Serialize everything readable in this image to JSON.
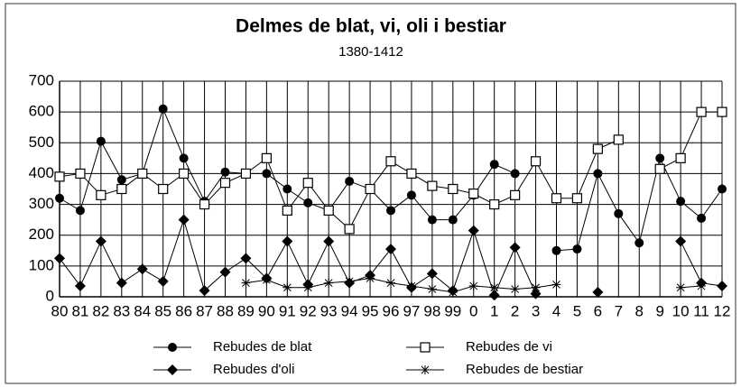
{
  "chart_data": {
    "type": "line",
    "title": "Delmes de blat, vi, oli i bestiar",
    "subtitle": "1380-1412",
    "categories": [
      "80",
      "81",
      "82",
      "83",
      "84",
      "85",
      "86",
      "87",
      "88",
      "89",
      "90",
      "91",
      "92",
      "93",
      "94",
      "95",
      "96",
      "97",
      "98",
      "99",
      "0",
      "1",
      "2",
      "3",
      "4",
      "5",
      "6",
      "7",
      "8",
      "9",
      "10",
      "11",
      "12"
    ],
    "series": [
      {
        "name": "Rebudes de blat",
        "color": "#000000",
        "marker": "circle",
        "values": [
          320,
          280,
          505,
          380,
          400,
          610,
          450,
          310,
          405,
          400,
          400,
          350,
          305,
          280,
          375,
          350,
          280,
          330,
          250,
          250,
          330,
          430,
          400,
          null,
          150,
          155,
          400,
          270,
          175,
          450,
          310,
          255,
          350
        ]
      },
      {
        "name": "Rebudes de vi",
        "color": "#000000",
        "marker": "square",
        "values": [
          390,
          400,
          330,
          350,
          400,
          350,
          400,
          300,
          370,
          400,
          450,
          280,
          370,
          280,
          220,
          350,
          440,
          400,
          360,
          350,
          335,
          300,
          330,
          440,
          320,
          320,
          480,
          510,
          null,
          415,
          450,
          600,
          600
        ]
      },
      {
        "name": "Rebudes d'oli",
        "color": "#000000",
        "marker": "diamond",
        "values": [
          125,
          35,
          180,
          45,
          90,
          50,
          250,
          20,
          80,
          125,
          60,
          180,
          40,
          180,
          45,
          70,
          155,
          30,
          75,
          20,
          215,
          5,
          160,
          10,
          null,
          null,
          15,
          null,
          null,
          null,
          180,
          45,
          35
        ]
      },
      {
        "name": "Rebudes de bestiar",
        "color": "#000000",
        "marker": "star",
        "values": [
          null,
          null,
          null,
          null,
          null,
          null,
          null,
          null,
          null,
          45,
          55,
          30,
          30,
          45,
          50,
          60,
          45,
          35,
          25,
          15,
          35,
          30,
          25,
          30,
          40,
          null,
          null,
          null,
          null,
          null,
          30,
          35,
          null
        ]
      }
    ],
    "ylim": [
      0,
      700
    ],
    "yticks": [
      0,
      100,
      200,
      300,
      400,
      500,
      600,
      700
    ],
    "grid": true,
    "legend": "bottom"
  }
}
